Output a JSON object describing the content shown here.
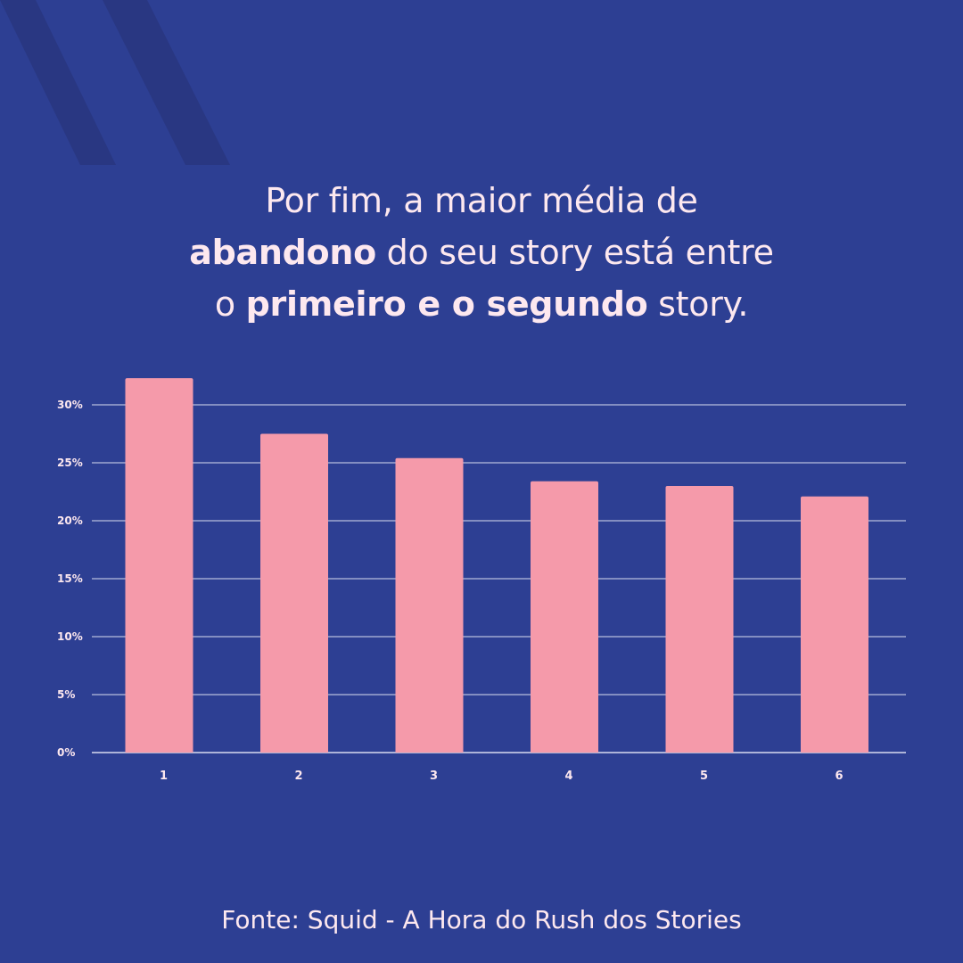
{
  "colors": {
    "background": "#2d3f93",
    "stripe": "#293782",
    "bar": "#f59aaa",
    "text": "#fde8ef",
    "gridline": "#d9dcef"
  },
  "title": {
    "line1": "Por fim, a maior média de",
    "line2_bold": "abandono",
    "line2_rest": " do seu story está entre",
    "line3_start": "o ",
    "line3_bold": "primeiro e o segundo",
    "line3_end": " story."
  },
  "chart_data": {
    "type": "bar",
    "categories": [
      "1",
      "2",
      "3",
      "4",
      "5",
      "6"
    ],
    "values": [
      32.3,
      27.5,
      25.4,
      23.4,
      23.0,
      22.1
    ],
    "yticks": [
      "0%",
      "5%",
      "10%",
      "15%",
      "20%",
      "25%",
      "30%"
    ],
    "ylim": [
      0,
      30
    ],
    "grid": true
  },
  "source": "Fonte: Squid - A Hora do Rush dos Stories"
}
